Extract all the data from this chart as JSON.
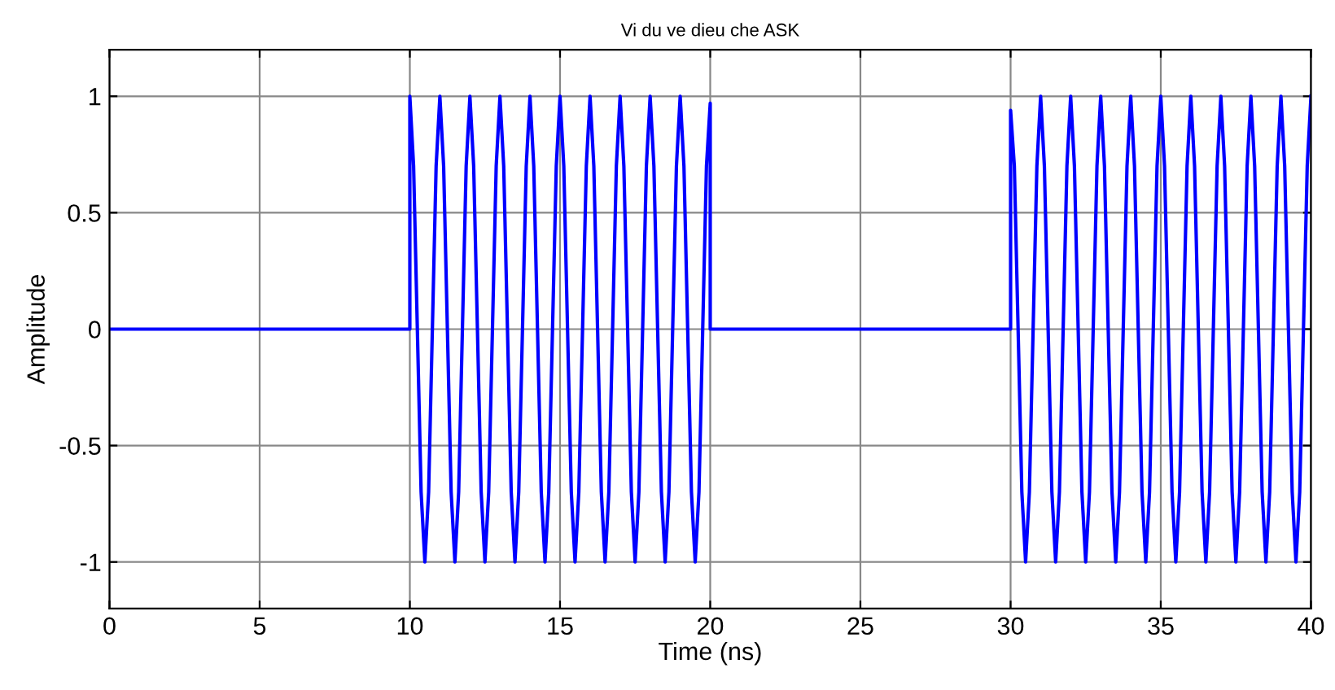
{
  "chart_data": {
    "type": "line",
    "title": "Vi du ve dieu che ASK",
    "xlabel": "Time (ns)",
    "ylabel": "Amplitude",
    "xlim": [
      0,
      40
    ],
    "ylim": [
      -1.2,
      1.2
    ],
    "xticks": [
      0,
      5,
      10,
      15,
      20,
      25,
      30,
      35,
      40
    ],
    "yticks": [
      -1,
      -0.5,
      0,
      0.5,
      1
    ],
    "grid": true,
    "line_style": "solid",
    "marker": "none",
    "series": [
      {
        "color": "#0000ff",
        "x": [
          0,
          10,
          10,
          10.125,
          10.25,
          10.375,
          10.5,
          10.625,
          10.75,
          10.875,
          11,
          11.125,
          11.25,
          11.375,
          11.5,
          11.625,
          11.75,
          11.875,
          12,
          12.125,
          12.25,
          12.375,
          12.5,
          12.625,
          12.75,
          12.875,
          13,
          13.125,
          13.25,
          13.375,
          13.5,
          13.625,
          13.75,
          13.875,
          14,
          14.125,
          14.25,
          14.375,
          14.5,
          14.625,
          14.75,
          14.875,
          15,
          15.125,
          15.25,
          15.375,
          15.5,
          15.625,
          15.75,
          15.875,
          16,
          16.125,
          16.25,
          16.375,
          16.5,
          16.625,
          16.75,
          16.875,
          17,
          17.125,
          17.25,
          17.375,
          17.5,
          17.625,
          17.75,
          17.875,
          18,
          18.125,
          18.25,
          18.375,
          18.5,
          18.625,
          18.75,
          18.875,
          19,
          19.125,
          19.25,
          19.375,
          19.5,
          19.625,
          19.75,
          19.875,
          20,
          20,
          30,
          30,
          30.125,
          30.25,
          30.375,
          30.5,
          30.625,
          30.75,
          30.875,
          31,
          31.125,
          31.25,
          31.375,
          31.5,
          31.625,
          31.75,
          31.875,
          32,
          32.125,
          32.25,
          32.375,
          32.5,
          32.625,
          32.75,
          32.875,
          33,
          33.125,
          33.25,
          33.375,
          33.5,
          33.625,
          33.75,
          33.875,
          34,
          34.125,
          34.25,
          34.375,
          34.5,
          34.625,
          34.75,
          34.875,
          35,
          35.125,
          35.25,
          35.375,
          35.5,
          35.625,
          35.75,
          35.875,
          36,
          36.125,
          36.25,
          36.375,
          36.5,
          36.625,
          36.75,
          36.875,
          37,
          37.125,
          37.25,
          37.375,
          37.5,
          37.625,
          37.75,
          37.875,
          38,
          38.125,
          38.25,
          38.375,
          38.5,
          38.625,
          38.75,
          38.875,
          39,
          39.125,
          39.25,
          39.375,
          39.5,
          39.625,
          39.75,
          39.875,
          40
        ],
        "values": [
          0,
          0,
          1,
          0.7,
          0,
          -0.7,
          -1,
          -0.7,
          0,
          0.7,
          1,
          0.7,
          0,
          -0.7,
          -1,
          -0.7,
          0,
          0.7,
          1,
          0.7,
          0,
          -0.7,
          -1,
          -0.7,
          0,
          0.7,
          1,
          0.7,
          0,
          -0.7,
          -1,
          -0.7,
          0,
          0.7,
          1,
          0.7,
          0,
          -0.7,
          -1,
          -0.7,
          0,
          0.7,
          1,
          0.7,
          0,
          -0.7,
          -1,
          -0.7,
          0,
          0.7,
          1,
          0.7,
          0,
          -0.7,
          -1,
          -0.7,
          0,
          0.7,
          1,
          0.7,
          0,
          -0.7,
          -1,
          -0.7,
          0,
          0.7,
          1,
          0.7,
          0,
          -0.7,
          -1,
          -0.7,
          0,
          0.7,
          1,
          0.7,
          0,
          -0.7,
          -1,
          -0.7,
          0,
          0.7,
          0.97,
          0,
          0,
          0.94,
          0.7,
          0,
          -0.7,
          -1,
          -0.7,
          0,
          0.7,
          1,
          0.7,
          0,
          -0.7,
          -1,
          -0.7,
          0,
          0.7,
          1,
          0.7,
          0,
          -0.7,
          -1,
          -0.7,
          0,
          0.7,
          1,
          0.7,
          0,
          -0.7,
          -1,
          -0.7,
          0,
          0.7,
          1,
          0.7,
          0,
          -0.7,
          -1,
          -0.7,
          0,
          0.7,
          1,
          0.7,
          0,
          -0.7,
          -1,
          -0.7,
          0,
          0.7,
          1,
          0.7,
          0,
          -0.7,
          -1,
          -0.7,
          0,
          0.7,
          1,
          0.7,
          0,
          -0.7,
          -1,
          -0.7,
          0,
          0.7,
          1,
          0.7,
          0,
          -0.7,
          -1,
          -0.7,
          0,
          0.7,
          1,
          0.7,
          0,
          -0.7,
          -1,
          -0.7,
          0,
          0.7,
          1
        ]
      }
    ]
  }
}
